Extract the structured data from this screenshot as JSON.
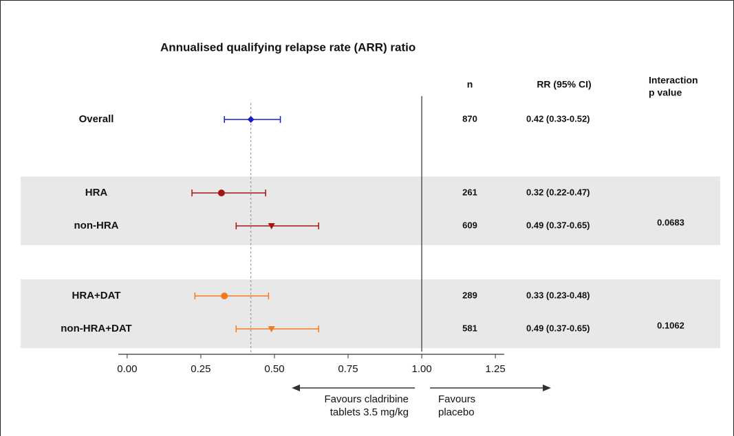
{
  "chart_data": {
    "type": "forest",
    "title": "Annualised qualifying relapse rate (ARR) ratio",
    "n_header": "n",
    "rr_header": "RR (95% CI)",
    "p_header": [
      "Interaction",
      "p value"
    ],
    "xlim": [
      -0.03,
      1.28
    ],
    "xticks": [
      {
        "value": 0,
        "label": "0.00"
      },
      {
        "value": 0.25,
        "label": "0.25"
      },
      {
        "value": 0.5,
        "label": "0.50"
      },
      {
        "value": 0.75,
        "label": "0.75"
      },
      {
        "value": 1,
        "label": "1.00"
      },
      {
        "value": 1.25,
        "label": "1.25"
      }
    ],
    "reference_line": 1,
    "left_label": [
      "Favours cladribine",
      "tablets 3.5 mg/kg"
    ],
    "right_label": [
      "Favours",
      "placebo"
    ],
    "groups": [
      {
        "shaded": false,
        "rows": [
          {
            "label": "Overall",
            "value": 0.42,
            "lower": 0.33,
            "upper": 0.52,
            "n": 870,
            "value_label": "0.42 (0.33-0.52)",
            "color": "#1a1ad0",
            "marker": "diamond"
          }
        ]
      },
      {
        "shaded": true,
        "p_value": 0.0683,
        "rows": [
          {
            "label": "HRA",
            "value": 0.32,
            "lower": 0.22,
            "upper": 0.47,
            "n": 261,
            "value_label": "0.32 (0.22-0.47)",
            "color": "#a31515",
            "marker": "circle"
          },
          {
            "label": "non-HRA",
            "value": 0.49,
            "lower": 0.37,
            "upper": 0.65,
            "n": 609,
            "value_label": "0.49 (0.37-0.65)",
            "color": "#a31515",
            "marker": "triangle-down"
          }
        ]
      },
      {
        "shaded": true,
        "p_value": 0.1062,
        "rows": [
          {
            "label": "HRA+DAT",
            "value": 0.33,
            "lower": 0.23,
            "upper": 0.48,
            "n": 289,
            "value_label": "0.33 (0.23-0.48)",
            "color": "#f47a20",
            "marker": "circle"
          },
          {
            "label": "non-HRA+DAT",
            "value": 0.49,
            "lower": 0.37,
            "upper": 0.65,
            "n": 581,
            "value_label": "0.49 (0.37-0.65)",
            "color": "#f47a20",
            "marker": "triangle-down"
          }
        ]
      }
    ]
  }
}
